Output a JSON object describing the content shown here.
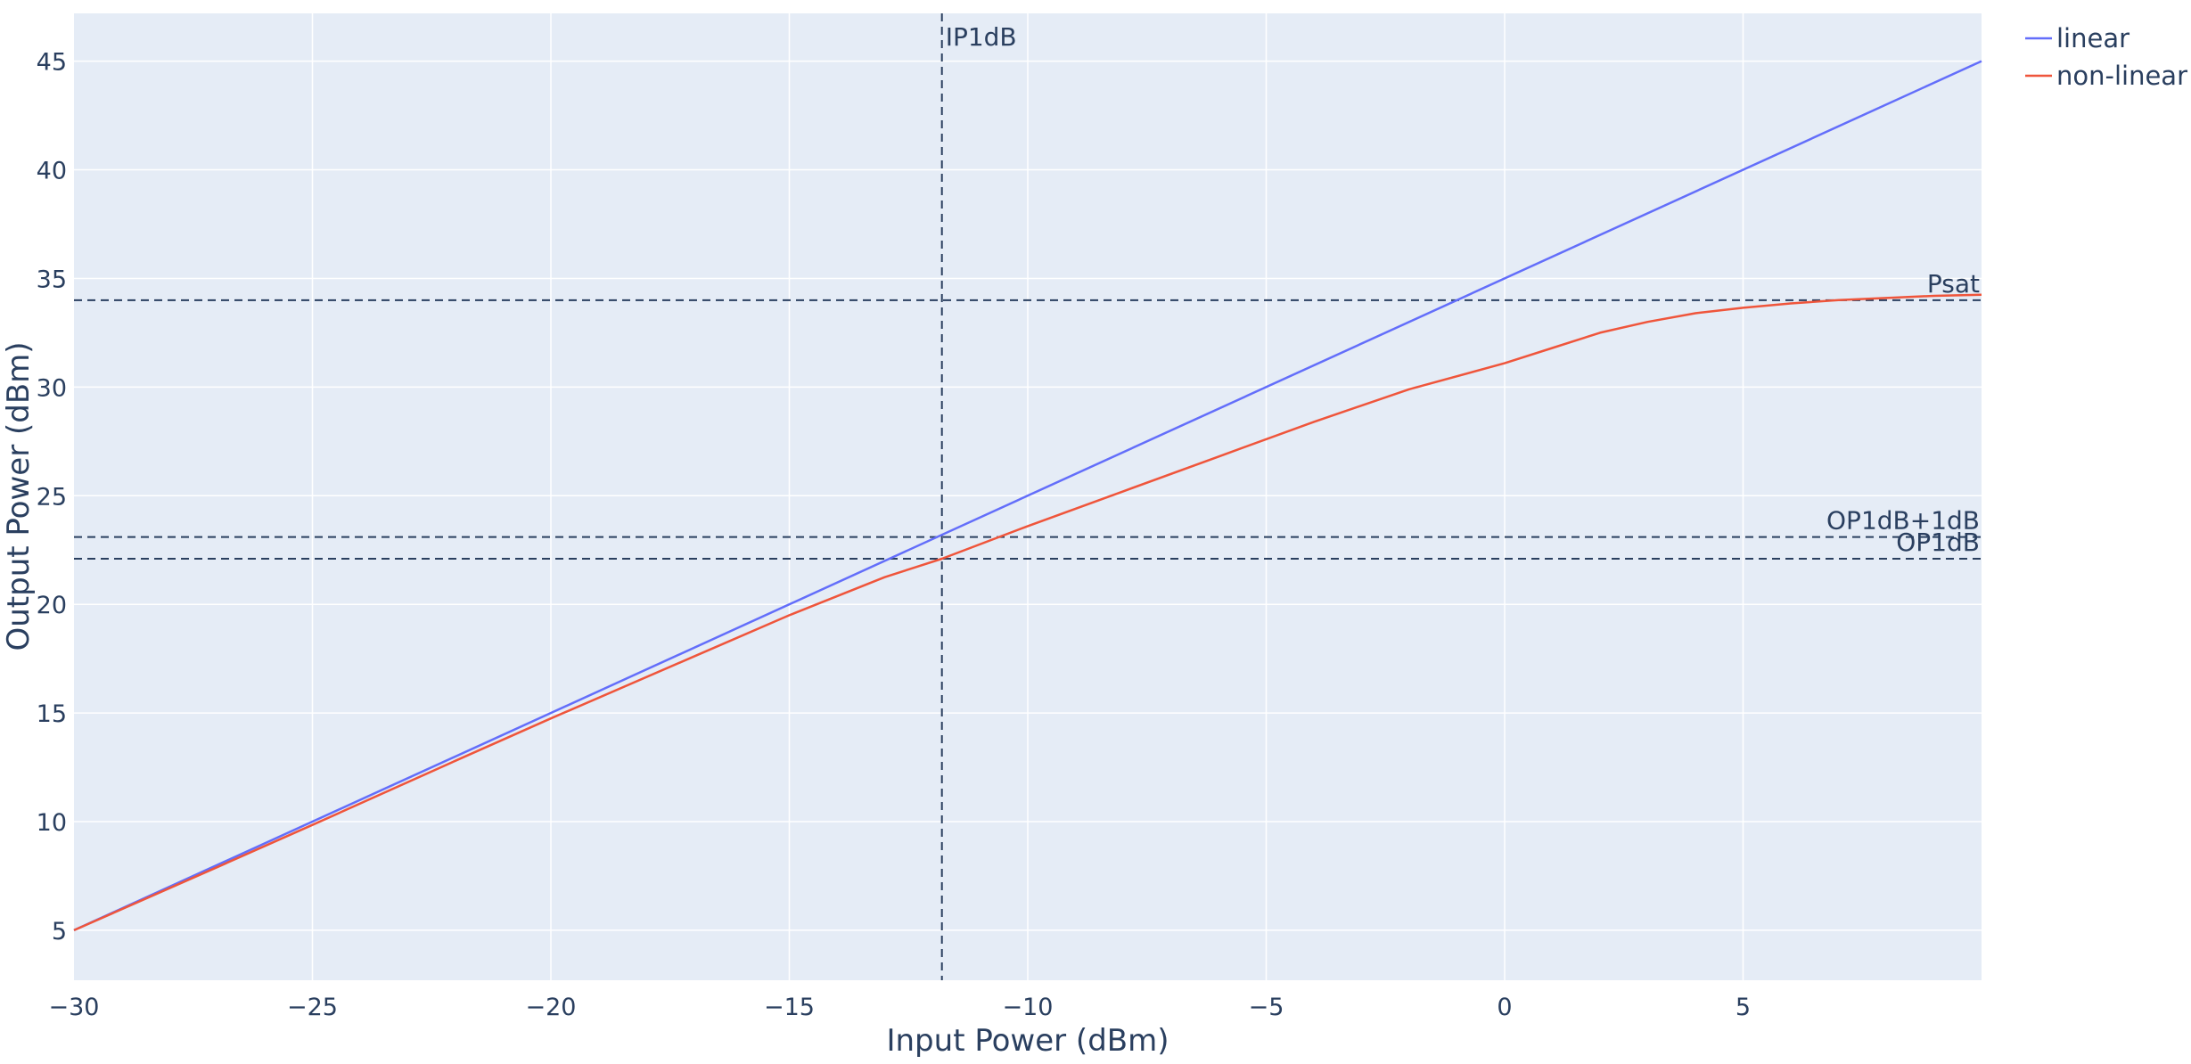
{
  "chart_data": {
    "type": "line",
    "title": "",
    "xlabel": "Input Power (dBm)",
    "ylabel": "Output Power (dBm)",
    "xlim": [
      -30,
      10
    ],
    "ylim": [
      2.7,
      47.2
    ],
    "x_ticks": [
      -30,
      -25,
      -20,
      -15,
      -10,
      -5,
      0,
      5
    ],
    "y_ticks": [
      5,
      10,
      15,
      20,
      25,
      30,
      35,
      40,
      45
    ],
    "x_tick_labels": [
      "−30",
      "−25",
      "−20",
      "−15",
      "−10",
      "−5",
      "0",
      "5"
    ],
    "y_tick_labels": [
      "5",
      "10",
      "15",
      "20",
      "25",
      "30",
      "35",
      "40",
      "45"
    ],
    "grid": true,
    "legend_position": "top-right",
    "colors": {
      "plot_bg": "#e5ecf6",
      "grid": "#ffffff",
      "text": "#2a3f5f",
      "reference_lines": "#2a3f5f"
    },
    "series": [
      {
        "name": "linear",
        "color": "#636efa",
        "x": [
          -30,
          10
        ],
        "y": [
          5,
          45
        ]
      },
      {
        "name": "non-linear",
        "color": "#ef553b",
        "x": [
          -30,
          -27,
          -25,
          -22,
          -20,
          -17,
          -15,
          -13,
          -11.8,
          -10,
          -8,
          -6,
          -4,
          -2,
          0,
          1,
          2,
          3,
          4,
          5,
          6,
          7,
          8,
          9,
          10
        ],
        "y": [
          5,
          7.9,
          9.85,
          12.8,
          14.75,
          17.6,
          19.5,
          21.25,
          22.1,
          23.6,
          25.2,
          26.8,
          28.4,
          29.9,
          31.1,
          31.8,
          32.5,
          33.0,
          33.4,
          33.65,
          33.85,
          34.0,
          34.1,
          34.2,
          34.25
        ]
      }
    ],
    "reference_lines": [
      {
        "orientation": "vertical",
        "value": -11.8,
        "label": "IP1dB"
      },
      {
        "orientation": "horizontal",
        "value": 34.0,
        "label": "Psat"
      },
      {
        "orientation": "horizontal",
        "value": 23.1,
        "label": "OP1dB+1dB"
      },
      {
        "orientation": "horizontal",
        "value": 22.1,
        "label": "OP1dB"
      }
    ]
  }
}
